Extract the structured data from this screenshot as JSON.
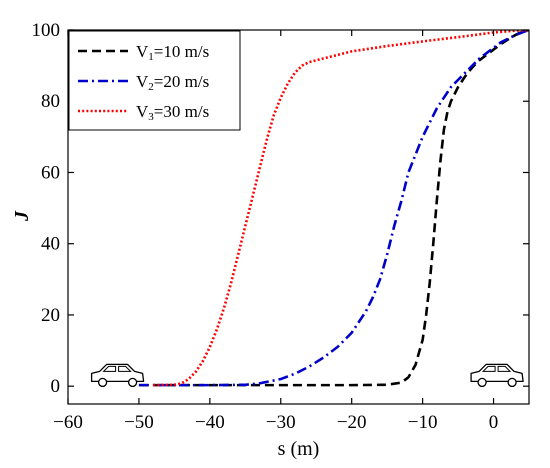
{
  "chart_data": {
    "type": "line",
    "title": "",
    "xlabel": "s (m)",
    "ylabel": "J",
    "xlim": [
      -60,
      5
    ],
    "ylim": [
      -5,
      100
    ],
    "xticks": [
      -60,
      -50,
      -40,
      -30,
      -20,
      -10,
      0
    ],
    "yticks": [
      0,
      20,
      40,
      60,
      80,
      100
    ],
    "grid": false,
    "legend_position": "top-left",
    "series": [
      {
        "name": "V1=10 m/s",
        "name_parts": {
          "main": "V",
          "sub": "1",
          "rest": "=10 m/s"
        },
        "color": "#000000",
        "style": "dashed",
        "x": [
          -50,
          -45,
          -40,
          -35,
          -30,
          -25,
          -20,
          -15,
          -13,
          -12,
          -11,
          -10,
          -9.5,
          -9,
          -8.5,
          -8,
          -7.5,
          -7,
          -6.5,
          -6,
          -5.5,
          -5,
          -4,
          -3,
          -2,
          -1,
          0,
          1,
          2,
          3,
          4,
          5
        ],
        "y": [
          0.3,
          0.3,
          0.3,
          0.3,
          0.3,
          0.3,
          0.3,
          0.4,
          1,
          2.5,
          6,
          13,
          20,
          29,
          40,
          52,
          63,
          72,
          77,
          80,
          82,
          84,
          87,
          89.5,
          91.5,
          93,
          94.5,
          96,
          97.3,
          98.5,
          99.5,
          100
        ]
      },
      {
        "name": "V2=20 m/s",
        "name_parts": {
          "main": "V",
          "sub": "2",
          "rest": "=20 m/s"
        },
        "color": "#0000cc",
        "style": "dashdot",
        "x": [
          -50,
          -45,
          -40,
          -35,
          -33,
          -30,
          -28,
          -26,
          -24,
          -22,
          -20,
          -18,
          -17,
          -16,
          -15,
          -14,
          -13,
          -12,
          -11,
          -10,
          -9,
          -8,
          -7,
          -6,
          -5,
          -4,
          -3,
          -2,
          -1,
          0,
          1,
          2,
          3,
          4,
          5
        ],
        "y": [
          0.3,
          0.3,
          0.3,
          0.4,
          0.8,
          2,
          3.5,
          5.5,
          8,
          11,
          15,
          21,
          25,
          30,
          37,
          45,
          52,
          60,
          65,
          70,
          74,
          78,
          81,
          84,
          86,
          88,
          90,
          92,
          93.5,
          95,
          96.5,
          97.5,
          98.5,
          99.3,
          100
        ]
      },
      {
        "name": "V3=30 m/s",
        "name_parts": {
          "main": "V",
          "sub": "3",
          "rest": "=30 m/s"
        },
        "color": "#ff0000",
        "style": "dotted",
        "x": [
          -48,
          -45,
          -44,
          -43,
          -42,
          -41,
          -40,
          -39,
          -38,
          -37,
          -36,
          -35,
          -34,
          -33,
          -32,
          -31,
          -30,
          -29,
          -28,
          -27,
          -26,
          -25,
          -22,
          -20,
          -15,
          -10,
          -5,
          0,
          3,
          5
        ],
        "y": [
          0.3,
          0.4,
          0.8,
          2,
          4,
          7,
          11,
          16,
          22,
          29,
          37,
          45,
          53,
          61,
          69,
          76,
          81,
          85,
          88,
          90,
          91,
          91.5,
          93,
          94,
          95.5,
          96.8,
          98,
          99.3,
          99.8,
          100
        ]
      }
    ],
    "annotations": [
      {
        "type": "car-icon",
        "x": -53,
        "y": 0.5
      },
      {
        "type": "car-icon",
        "x": 0.5,
        "y": 0.5
      }
    ]
  }
}
